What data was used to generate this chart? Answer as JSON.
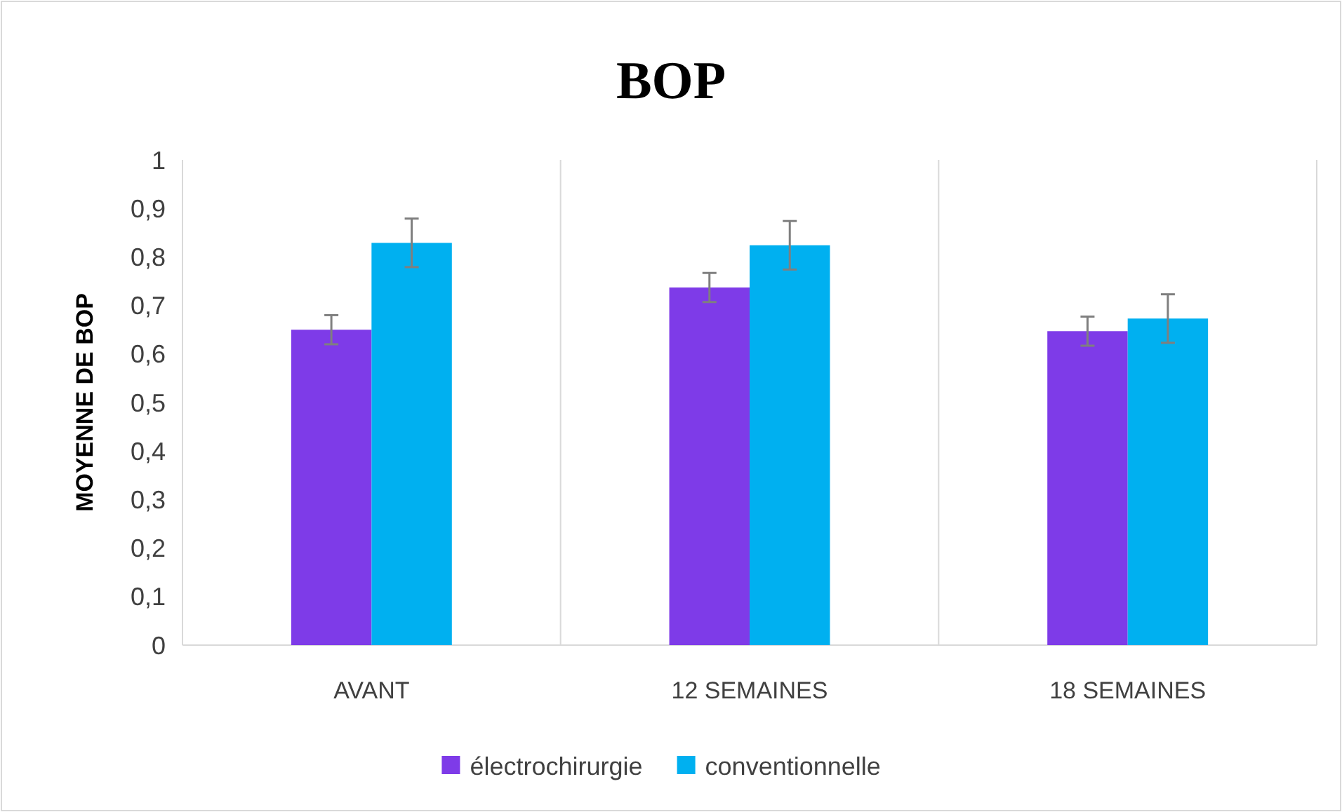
{
  "chart_data": {
    "type": "bar",
    "title": "BOP",
    "ylabel": "MOYENNE DE BOP",
    "categories": [
      "AVANT",
      "12 SEMAINES",
      "18 SEMAINES"
    ],
    "series": [
      {
        "name": "électrochirurgie",
        "color": "#7e3be8",
        "values": [
          0.65,
          0.737,
          0.647
        ],
        "errors": [
          0.03,
          0.03,
          0.03
        ]
      },
      {
        "name": "conventionnelle",
        "color": "#00b0f0",
        "values": [
          0.829,
          0.824,
          0.673
        ],
        "errors": [
          0.05,
          0.05,
          0.05
        ]
      }
    ],
    "ylim": [
      0,
      1
    ],
    "yticks": [
      0,
      {
        "value": 0.1,
        "label": "0,1"
      },
      {
        "value": 0.2,
        "label": "0,2"
      },
      {
        "value": 0.3,
        "label": "0,3"
      },
      {
        "value": 0.4,
        "label": "0,4"
      },
      {
        "value": 0.5,
        "label": "0,5"
      },
      {
        "value": 0.6,
        "label": "0,6"
      },
      {
        "value": 0.7,
        "label": "0,7"
      },
      {
        "value": 0.8,
        "label": "0,8"
      },
      {
        "value": 0.9,
        "label": "0,9"
      },
      1
    ],
    "grid": "x",
    "legend": "bottom"
  }
}
